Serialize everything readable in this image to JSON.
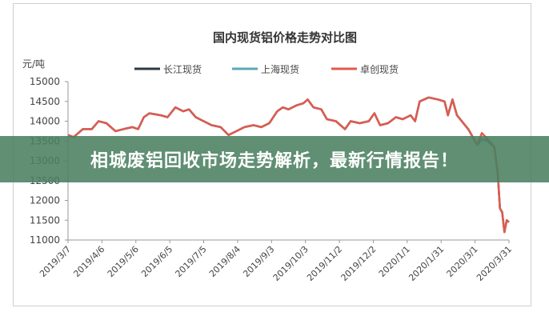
{
  "chart_data": {
    "type": "line",
    "title": "国内现货铝价格走势对比图",
    "ylabel": "元/吨",
    "xlabel": "",
    "ylim": [
      11000,
      15000
    ],
    "yticks": [
      11000,
      11500,
      12000,
      12500,
      13000,
      13500,
      14000,
      14500,
      15000
    ],
    "xlim": [
      "2019-03-07",
      "2020-03-31"
    ],
    "xtick_labels": [
      "2019/3/7",
      "2019/4/6",
      "2019/5/6",
      "2019/6/5",
      "2019/7/5",
      "2019/8/4",
      "2019/9/3",
      "2019/10/3",
      "2019/11/2",
      "2019/12/2",
      "2020/1/1",
      "2020/1/31",
      "2020/3/1",
      "2020/3/31"
    ],
    "legend_position": "top",
    "grid": false,
    "x": [
      "2019-03-07",
      "2019-03-12",
      "2019-03-20",
      "2019-03-28",
      "2019-04-03",
      "2019-04-10",
      "2019-04-18",
      "2019-04-25",
      "2019-05-03",
      "2019-05-08",
      "2019-05-13",
      "2019-05-18",
      "2019-05-28",
      "2019-06-03",
      "2019-06-10",
      "2019-06-17",
      "2019-06-22",
      "2019-06-28",
      "2019-07-05",
      "2019-07-12",
      "2019-07-20",
      "2019-07-27",
      "2019-08-03",
      "2019-08-10",
      "2019-08-18",
      "2019-08-25",
      "2019-09-01",
      "2019-09-08",
      "2019-09-13",
      "2019-09-18",
      "2019-09-25",
      "2019-10-01",
      "2019-10-05",
      "2019-10-10",
      "2019-10-17",
      "2019-10-22",
      "2019-10-30",
      "2019-11-07",
      "2019-11-12",
      "2019-11-20",
      "2019-11-28",
      "2019-12-03",
      "2019-12-08",
      "2019-12-15",
      "2019-12-22",
      "2019-12-28",
      "2020-01-04",
      "2020-01-08",
      "2020-01-12",
      "2020-01-20",
      "2020-01-28",
      "2020-02-03",
      "2020-02-06",
      "2020-02-10",
      "2020-02-14",
      "2020-02-24",
      "2020-03-03",
      "2020-03-07",
      "2020-03-12",
      "2020-03-18",
      "2020-03-21",
      "2020-03-23",
      "2020-03-25",
      "2020-03-27",
      "2020-03-29",
      "2020-03-31"
    ],
    "series": [
      {
        "name": "长江现货",
        "color": "#2e3b44",
        "values": [
          13650,
          13600,
          13800,
          13800,
          14000,
          13950,
          13750,
          13800,
          13850,
          13800,
          14100,
          14200,
          14150,
          14100,
          14350,
          14250,
          14300,
          14100,
          14000,
          13900,
          13850,
          13650,
          13750,
          13850,
          13900,
          13850,
          13950,
          14250,
          14350,
          14300,
          14400,
          14450,
          14550,
          14350,
          14300,
          14050,
          14000,
          13800,
          14000,
          13950,
          14000,
          14200,
          13900,
          13950,
          14100,
          14050,
          14150,
          14000,
          14500,
          14600,
          14550,
          14500,
          14150,
          14550,
          14150,
          13800,
          13400,
          13550,
          13500,
          13350,
          12700,
          11800,
          11700,
          11200,
          11500,
          11450
        ]
      },
      {
        "name": "上海现货",
        "color": "#5aa9b5",
        "values": [
          13650,
          13600,
          13800,
          13800,
          14000,
          13950,
          13750,
          13800,
          13850,
          13800,
          14100,
          14200,
          14150,
          14100,
          14350,
          14250,
          14300,
          14100,
          14000,
          13900,
          13850,
          13650,
          13750,
          13850,
          13900,
          13850,
          13950,
          14250,
          14350,
          14300,
          14400,
          14450,
          14550,
          14350,
          14300,
          14050,
          14000,
          13800,
          14000,
          13950,
          14000,
          14200,
          13900,
          13950,
          14100,
          14050,
          14150,
          14000,
          14500,
          14600,
          14550,
          14500,
          14150,
          14550,
          14150,
          13800,
          13400,
          13550,
          13500,
          13350,
          12700,
          11800,
          11700,
          11200,
          11500,
          11450
        ]
      },
      {
        "name": "卓创现货",
        "color": "#e05a4e",
        "values": [
          13650,
          13600,
          13800,
          13800,
          14000,
          13950,
          13750,
          13800,
          13850,
          13800,
          14100,
          14200,
          14150,
          14100,
          14350,
          14250,
          14300,
          14100,
          14000,
          13900,
          13850,
          13650,
          13750,
          13850,
          13900,
          13850,
          13950,
          14250,
          14350,
          14300,
          14400,
          14450,
          14550,
          14350,
          14300,
          14050,
          14000,
          13800,
          14000,
          13950,
          14000,
          14200,
          13900,
          13950,
          14100,
          14050,
          14150,
          14000,
          14500,
          14600,
          14550,
          14500,
          14150,
          14550,
          14150,
          13800,
          13400,
          13700,
          13550,
          13350,
          12700,
          11800,
          11700,
          11200,
          11500,
          11450
        ]
      }
    ]
  },
  "banner": {
    "text": "相城废铝回收市场走势解析，最新行情报告！"
  }
}
